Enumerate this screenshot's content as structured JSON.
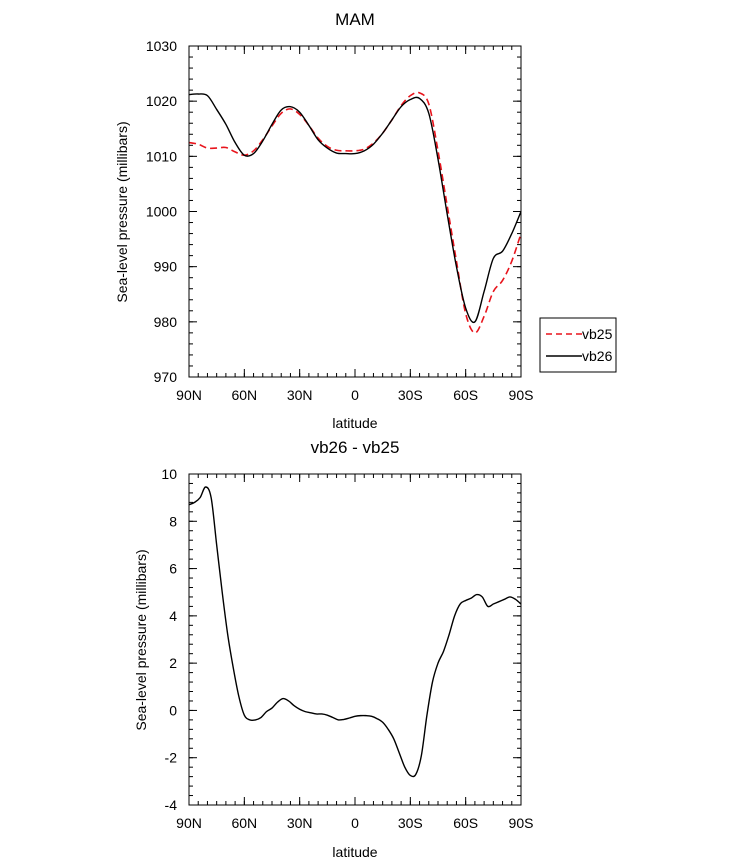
{
  "chart_data": [
    {
      "type": "line",
      "title": "MAM",
      "xlabel": "latitude",
      "ylabel": "Sea-level pressure (millibars)",
      "xlim": [
        90,
        -90
      ],
      "ylim": [
        970,
        1030
      ],
      "x_ticks": [
        {
          "value": 90,
          "label": "90N"
        },
        {
          "value": 60,
          "label": "60N"
        },
        {
          "value": 30,
          "label": "30N"
        },
        {
          "value": 0,
          "label": "0"
        },
        {
          "value": -30,
          "label": "30S"
        },
        {
          "value": -60,
          "label": "60S"
        },
        {
          "value": -90,
          "label": "90S"
        }
      ],
      "y_ticks": [
        {
          "value": 970,
          "label": "970"
        },
        {
          "value": 980,
          "label": "980"
        },
        {
          "value": 990,
          "label": "990"
        },
        {
          "value": 1000,
          "label": "1000"
        },
        {
          "value": 1010,
          "label": "1010"
        },
        {
          "value": 1020,
          "label": "1020"
        },
        {
          "value": 1030,
          "label": "1030"
        }
      ],
      "legend_position": "outside-right-bottom",
      "series": [
        {
          "name": "vb25",
          "color": "#e8141c",
          "dash": "dashed",
          "x": [
            90,
            85,
            80,
            75,
            70,
            65,
            60,
            55,
            50,
            45,
            40,
            35,
            30,
            25,
            20,
            15,
            10,
            5,
            0,
            -5,
            -10,
            -15,
            -20,
            -25,
            -30,
            -35,
            -40,
            -45,
            -50,
            -55,
            -60,
            -65,
            -70,
            -75,
            -80,
            -85,
            -90
          ],
          "values": [
            1012.5,
            1012.2,
            1011.5,
            1011.5,
            1011.6,
            1010.8,
            1010.2,
            1011.0,
            1013.0,
            1015.5,
            1017.8,
            1018.6,
            1017.6,
            1015.6,
            1013.3,
            1011.8,
            1011.1,
            1011.0,
            1011.0,
            1011.3,
            1012.4,
            1014.2,
            1016.6,
            1019.2,
            1021.0,
            1021.5,
            1019.5,
            1011.0,
            1001.0,
            991.0,
            981.5,
            978.0,
            981.0,
            985.5,
            987.5,
            991.0,
            996.0
          ]
        },
        {
          "name": "vb26",
          "color": "#000000",
          "dash": "solid",
          "x": [
            90,
            85,
            80,
            75,
            70,
            65,
            60,
            55,
            50,
            45,
            40,
            35,
            30,
            25,
            20,
            15,
            10,
            5,
            0,
            -5,
            -10,
            -15,
            -20,
            -25,
            -30,
            -35,
            -40,
            -45,
            -50,
            -55,
            -60,
            -65,
            -70,
            -75,
            -80,
            -85,
            -90
          ],
          "values": [
            1021.2,
            1021.3,
            1021.0,
            1018.5,
            1015.8,
            1012.5,
            1010.2,
            1010.5,
            1012.8,
            1015.8,
            1018.4,
            1019.0,
            1018.0,
            1015.6,
            1013.0,
            1011.5,
            1010.6,
            1010.5,
            1010.5,
            1011.0,
            1012.2,
            1014.2,
            1016.6,
            1019.0,
            1020.3,
            1020.5,
            1017.8,
            1009.5,
            999.5,
            990.0,
            982.5,
            980.0,
            985.5,
            991.5,
            992.8,
            996.0,
            1000.0
          ]
        }
      ]
    },
    {
      "type": "line",
      "title": "vb26 - vb25",
      "xlabel": "latitude",
      "ylabel": "Sea-level pressure (millibars)",
      "xlim": [
        90,
        -90
      ],
      "ylim": [
        -4,
        10
      ],
      "x_ticks": [
        {
          "value": 90,
          "label": "90N"
        },
        {
          "value": 60,
          "label": "60N"
        },
        {
          "value": 30,
          "label": "30N"
        },
        {
          "value": 0,
          "label": "0"
        },
        {
          "value": -30,
          "label": "30S"
        },
        {
          "value": -60,
          "label": "60S"
        },
        {
          "value": -90,
          "label": "90S"
        }
      ],
      "y_ticks": [
        {
          "value": -4,
          "label": "-4"
        },
        {
          "value": -2,
          "label": "-2"
        },
        {
          "value": 0,
          "label": "0"
        },
        {
          "value": 2,
          "label": "2"
        },
        {
          "value": 4,
          "label": "4"
        },
        {
          "value": 6,
          "label": "6"
        },
        {
          "value": 8,
          "label": "8"
        },
        {
          "value": 10,
          "label": "10"
        }
      ],
      "series": [
        {
          "name": "vb26 - vb25",
          "color": "#000000",
          "dash": "solid",
          "x": [
            90,
            87,
            84,
            81,
            78,
            75,
            72,
            69,
            66,
            63,
            60,
            57,
            54,
            51,
            48,
            45,
            42,
            39,
            36,
            33,
            30,
            27,
            24,
            21,
            18,
            15,
            12,
            9,
            6,
            3,
            0,
            -3,
            -6,
            -9,
            -12,
            -15,
            -18,
            -21,
            -24,
            -27,
            -30,
            -33,
            -36,
            -39,
            -42,
            -45,
            -48,
            -51,
            -54,
            -57,
            -60,
            -63,
            -66,
            -69,
            -72,
            -75,
            -78,
            -81,
            -84,
            -87,
            -90
          ],
          "values": [
            8.7,
            8.8,
            9.0,
            9.45,
            9.0,
            7.0,
            5.0,
            3.2,
            1.8,
            0.6,
            -0.2,
            -0.4,
            -0.4,
            -0.3,
            -0.05,
            0.1,
            0.35,
            0.5,
            0.4,
            0.2,
            0.05,
            -0.05,
            -0.1,
            -0.15,
            -0.15,
            -0.2,
            -0.3,
            -0.4,
            -0.38,
            -0.32,
            -0.25,
            -0.22,
            -0.22,
            -0.25,
            -0.35,
            -0.5,
            -0.8,
            -1.2,
            -1.8,
            -2.4,
            -2.75,
            -2.7,
            -1.9,
            -0.2,
            1.2,
            2.0,
            2.5,
            3.2,
            4.0,
            4.5,
            4.65,
            4.75,
            4.9,
            4.8,
            4.4,
            4.5,
            4.6,
            4.7,
            4.8,
            4.7,
            4.5
          ]
        }
      ]
    }
  ]
}
